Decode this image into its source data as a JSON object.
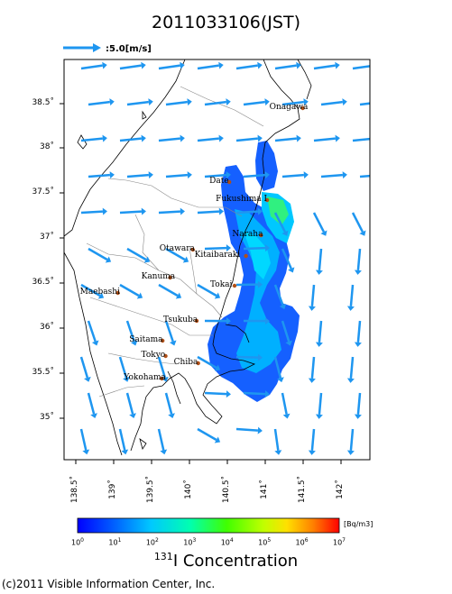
{
  "header": {
    "title": "2011033106(JST)",
    "wind_scale_label": ":5.0[m/s]"
  },
  "map": {
    "lat_ticks": [
      "38.5˚",
      "38˚",
      "37.5˚",
      "37˚",
      "36.5˚",
      "36˚",
      "35.5˚",
      "35˚"
    ],
    "lon_ticks": [
      "138.5˚",
      "139˚",
      "139.5˚",
      "140˚",
      "140.5˚",
      "141˚",
      "141.5˚",
      "142˚"
    ],
    "cities": [
      {
        "name": "Onagawa",
        "lon": 141.5,
        "lat": 38.44
      },
      {
        "name": "Date",
        "lon": 140.53,
        "lat": 37.62
      },
      {
        "name": "Fukushima I",
        "lon": 141.03,
        "lat": 37.42
      },
      {
        "name": "Naraha",
        "lon": 140.95,
        "lat": 37.03
      },
      {
        "name": "Otawara",
        "lon": 140.05,
        "lat": 36.87
      },
      {
        "name": "Kitaibaraki",
        "lon": 140.75,
        "lat": 36.8
      },
      {
        "name": "Kanuma",
        "lon": 139.75,
        "lat": 36.56
      },
      {
        "name": "Tokai",
        "lon": 140.6,
        "lat": 36.47
      },
      {
        "name": "Maebashi",
        "lon": 139.06,
        "lat": 36.39
      },
      {
        "name": "Tsukuba",
        "lon": 140.1,
        "lat": 36.08
      },
      {
        "name": "Saitama",
        "lon": 139.65,
        "lat": 35.86
      },
      {
        "name": "Tokyo",
        "lon": 139.69,
        "lat": 35.69
      },
      {
        "name": "Chiba",
        "lon": 140.12,
        "lat": 35.61
      },
      {
        "name": "Yokohama",
        "lon": 139.64,
        "lat": 35.44
      }
    ],
    "colors": {
      "ocean": "#ffffff",
      "coast": "#000000",
      "border": "#888888",
      "wind_arrow": "#1e96f0",
      "city_dot": "#b05018"
    }
  },
  "colorbar": {
    "unit": "[Bq/m3]",
    "ticks": [
      {
        "base": "10",
        "exp": "0"
      },
      {
        "base": "10",
        "exp": "1"
      },
      {
        "base": "10",
        "exp": "2"
      },
      {
        "base": "10",
        "exp": "3"
      },
      {
        "base": "10",
        "exp": "4"
      },
      {
        "base": "10",
        "exp": "5"
      },
      {
        "base": "10",
        "exp": "6"
      },
      {
        "base": "10",
        "exp": "7"
      }
    ],
    "colors": [
      "#0000ff",
      "#0060ff",
      "#00c8ff",
      "#00ff90",
      "#40ff00",
      "#c0ff00",
      "#ffd000",
      "#ff6000",
      "#ff0000"
    ]
  },
  "footer": {
    "isotope": "131",
    "label": "I Concentration",
    "copyright": "(c)2011 Visible Information Center, Inc."
  }
}
